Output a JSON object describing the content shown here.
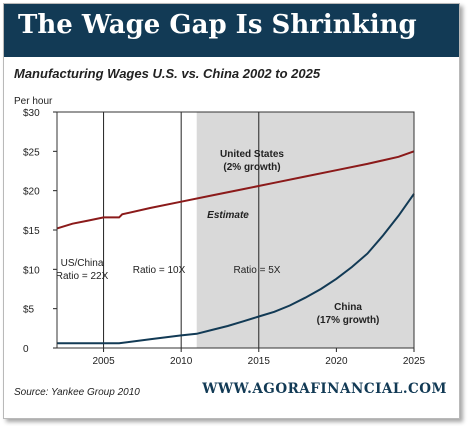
{
  "banner": {
    "title": "The Wage Gap Is Shrinking"
  },
  "chart_data": {
    "type": "line",
    "title": "Manufacturing Wages U.S. vs. China 2002 to 2025",
    "ylabel": "Per hour",
    "xlim": [
      2002,
      2025
    ],
    "ylim": [
      0,
      30
    ],
    "x_ticks": [
      2005,
      2010,
      2015,
      2020,
      2025
    ],
    "y_ticks": [
      {
        "value": 0,
        "label": "0"
      },
      {
        "value": 5,
        "label": "$5"
      },
      {
        "value": 10,
        "label": "$10"
      },
      {
        "value": 15,
        "label": "$15"
      },
      {
        "value": 20,
        "label": "$20"
      },
      {
        "value": 25,
        "label": "$25"
      },
      {
        "value": 30,
        "label": "$30"
      }
    ],
    "estimate_region": {
      "start": 2011,
      "end": 2025,
      "color": "#d9d9d9",
      "label": "Estimate"
    },
    "reference_lines": [
      2005,
      2010,
      2015
    ],
    "series": [
      {
        "name": "United States",
        "label_line1": "United States",
        "label_line2": "(2% growth)",
        "color": "#8b1a1a",
        "x": [
          2002,
          2003,
          2004,
          2005,
          2006,
          2006.2,
          2008,
          2010,
          2012,
          2014,
          2016,
          2018,
          2020,
          2022,
          2024,
          2025
        ],
        "y": [
          15.2,
          15.8,
          16.2,
          16.6,
          16.6,
          17.0,
          17.8,
          18.6,
          19.4,
          20.2,
          21.0,
          21.8,
          22.6,
          23.4,
          24.3,
          25.0
        ]
      },
      {
        "name": "China",
        "label_line1": "China",
        "label_line2": "(17% growth)",
        "color": "#123a55",
        "x": [
          2002,
          2004,
          2006,
          2008,
          2010,
          2011,
          2012,
          2013,
          2014,
          2015,
          2016,
          2017,
          2018,
          2019,
          2020,
          2021,
          2022,
          2023,
          2024,
          2025
        ],
        "y": [
          0.6,
          0.6,
          0.6,
          1.1,
          1.6,
          1.8,
          2.3,
          2.8,
          3.4,
          4.0,
          4.6,
          5.4,
          6.4,
          7.5,
          8.8,
          10.3,
          12.0,
          14.3,
          16.8,
          19.6
        ]
      }
    ],
    "annotations": [
      {
        "line1": "US/China",
        "line2": "Ratio = 22X"
      },
      {
        "line1": "Ratio = 10X"
      },
      {
        "line1": "Ratio = 5X"
      }
    ]
  },
  "source": "Source: Yankee Group 2010",
  "site": "WWW.AGORAFINANCIAL.COM"
}
